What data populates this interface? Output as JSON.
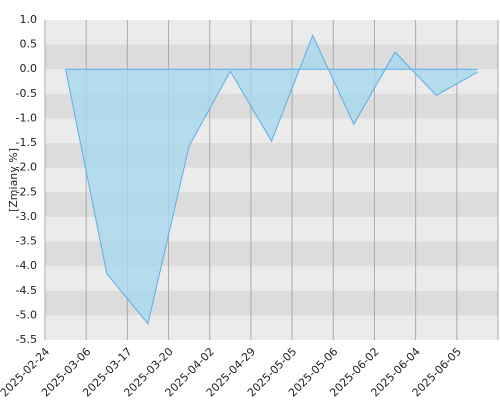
{
  "chart_data": {
    "type": "area",
    "y_label": "[Zmiany %]",
    "categories": [
      "2025-02-24",
      "2025-03-06",
      "2025-03-17",
      "2025-03-20",
      "2025-04-02",
      "2025-04-29",
      "2025-05-05",
      "2025-05-06",
      "2025-06-02",
      "2025-06-04",
      "2025-06-05"
    ],
    "values": [
      0.0,
      -4.15,
      -5.17,
      -1.56,
      -0.04,
      -1.46,
      0.69,
      -1.12,
      0.35,
      -0.53,
      -0.06
    ],
    "color": "#5aaeea",
    "fill": "#a8d8ec",
    "ylim": [
      -5.5,
      1.0
    ],
    "yticks": [
      {
        "value": 1,
        "label": "1.0"
      },
      0.5,
      {
        "value": 0,
        "label": "0.0"
      },
      -0.5,
      {
        "value": -1,
        "label": "-1.0"
      },
      -1.5,
      {
        "value": -2,
        "label": "-2.0"
      },
      -2.5,
      {
        "value": -3,
        "label": "-3.0"
      },
      -3.5,
      {
        "value": -4,
        "label": "-4.0"
      },
      -4.5,
      {
        "value": -5,
        "label": "-5.0"
      },
      -5.5
    ],
    "grid": true
  }
}
